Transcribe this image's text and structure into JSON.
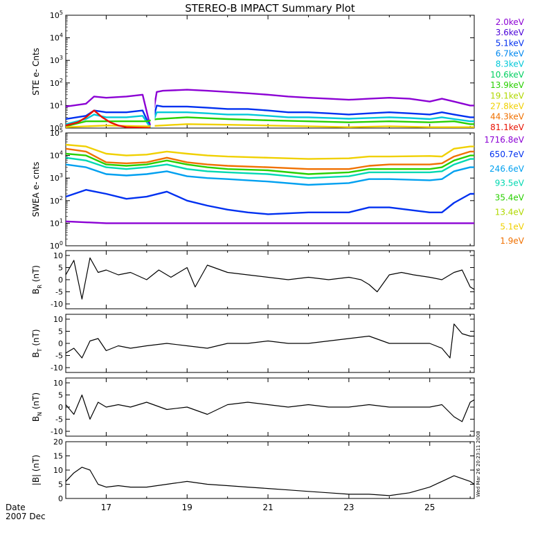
{
  "title": "STEREO-B IMPACT Summary Plot",
  "timestamp": "Wed Mar 26 20:23:11 2008",
  "date_label": "Date",
  "month_label": "2007 Dec",
  "chart_data": [
    {
      "type": "line",
      "name": "ste",
      "ylabel": "STE e- Cnts",
      "scale": "log",
      "ylim": [
        1,
        100000
      ],
      "ticks": [
        1,
        10,
        100,
        1000,
        10000,
        100000
      ],
      "tick_labels": [
        "10^0",
        "10^1",
        "10^2",
        "10^3",
        "10^4",
        "10^5"
      ],
      "xlim": [
        16,
        26.1
      ],
      "gap": [
        18.1,
        18.2
      ],
      "legend": [
        {
          "label": "2.0keV",
          "color": "#8b00d4"
        },
        {
          "label": "3.6keV",
          "color": "#4a00d8"
        },
        {
          "label": "5.1keV",
          "color": "#0030f0"
        },
        {
          "label": "6.7keV",
          "color": "#0088f0"
        },
        {
          "label": "8.3keV",
          "color": "#00c8d8"
        },
        {
          "label": "10.6keV",
          "color": "#00d060"
        },
        {
          "label": "13.9keV",
          "color": "#28d000"
        },
        {
          "label": "19.1keV",
          "color": "#b0d800"
        },
        {
          "label": "27.8keV",
          "color": "#f0d000"
        },
        {
          "label": "44.3keV",
          "color": "#f07000"
        },
        {
          "label": "81.1keV",
          "color": "#e81000"
        }
      ],
      "series": [
        {
          "color": "#8b00d4",
          "x": [
            16,
            16.5,
            16.7,
            17,
            17.5,
            17.9,
            18.1,
            18.25,
            18.4,
            19,
            19.5,
            20,
            20.5,
            21,
            21.5,
            22,
            22.5,
            23,
            23.5,
            24,
            24.5,
            25,
            25.3,
            25.6,
            26,
            26.1
          ],
          "y": [
            9,
            12,
            25,
            22,
            25,
            30,
            1,
            40,
            45,
            50,
            45,
            40,
            35,
            30,
            25,
            22,
            20,
            18,
            20,
            22,
            20,
            15,
            20,
            15,
            10,
            10
          ]
        },
        {
          "color": "#0030f0",
          "x": [
            16,
            16.5,
            16.7,
            17,
            17.5,
            17.9,
            18.1,
            18.25,
            18.4,
            19,
            19.5,
            20,
            20.5,
            21,
            21.5,
            22,
            22.5,
            23,
            23.5,
            24,
            24.5,
            25,
            25.3,
            25.6,
            26,
            26.1
          ],
          "y": [
            2.5,
            3.5,
            6,
            5,
            5,
            6,
            1,
            10,
            9,
            9,
            8,
            7,
            7,
            6,
            5,
            5,
            4.5,
            4,
            4.5,
            5,
            4.5,
            4,
            5,
            4,
            3,
            3
          ]
        },
        {
          "color": "#00c8d8",
          "x": [
            16,
            16.5,
            16.7,
            17,
            17.5,
            17.9,
            18.1,
            18.25,
            18.4,
            19,
            19.5,
            20,
            20.5,
            21,
            21.5,
            22,
            22.5,
            23,
            23.5,
            24,
            24.5,
            25,
            25.3,
            25.6,
            26,
            26.1
          ],
          "y": [
            1.5,
            2.5,
            4,
            3,
            3,
            3.5,
            1,
            5,
            5,
            5,
            4.5,
            4,
            4,
            3.5,
            3,
            3,
            2.8,
            2.6,
            2.8,
            3,
            2.8,
            2.5,
            3,
            2.5,
            2,
            2
          ]
        },
        {
          "color": "#28d000",
          "x": [
            16,
            16.5,
            17,
            17.5,
            18,
            18.25,
            19,
            20,
            21,
            22,
            23,
            24,
            25,
            25.6,
            26,
            26.1
          ],
          "y": [
            1.2,
            2,
            2,
            2,
            2,
            2.5,
            3,
            2.5,
            2.2,
            2,
            1.8,
            2,
            1.8,
            2,
            1.5,
            1.5
          ]
        },
        {
          "color": "#f0d000",
          "x": [
            16,
            17,
            18,
            19,
            20,
            21,
            22,
            23,
            24,
            25,
            26,
            26.1
          ],
          "y": [
            1.1,
            1.3,
            1.2,
            1.5,
            1.4,
            1.3,
            1.2,
            1.1,
            1.2,
            1.1,
            1.1,
            1.1
          ]
        },
        {
          "color": "#e81000",
          "x": [
            16,
            16.3,
            16.5,
            16.7,
            16.9,
            17.1,
            17.3,
            17.5,
            17.8,
            18.1
          ],
          "y": [
            1.3,
            1.8,
            3,
            6,
            3,
            1.8,
            1.3,
            1.1,
            1.05,
            1
          ]
        }
      ]
    },
    {
      "type": "line",
      "name": "swea",
      "ylabel": "SWEA e- cnts",
      "scale": "log",
      "ylim": [
        1,
        100000
      ],
      "ticks": [
        1,
        10,
        100,
        1000,
        10000,
        100000
      ],
      "tick_labels": [
        "10^0",
        "10^1",
        "10^2",
        "10^3",
        "10^4",
        "10^5"
      ],
      "xlim": [
        16,
        26.1
      ],
      "legend": [
        {
          "label": "1716.8eV",
          "color": "#8b00d4"
        },
        {
          "label": "650.7eV",
          "color": "#0030f0"
        },
        {
          "label": "246.6eV",
          "color": "#00a0f0"
        },
        {
          "label": "93.5eV",
          "color": "#00d8b0"
        },
        {
          "label": "35.4eV",
          "color": "#28d000"
        },
        {
          "label": "13.4eV",
          "color": "#b0d800"
        },
        {
          "label": "5.1eV",
          "color": "#f0d000"
        },
        {
          "label": "1.9eV",
          "color": "#f07000"
        }
      ],
      "series": [
        {
          "color": "#f0d000",
          "x": [
            16,
            16.5,
            17,
            17.5,
            18,
            18.5,
            19,
            19.5,
            20,
            21,
            22,
            23,
            23.5,
            24,
            25,
            25.3,
            25.6,
            26,
            26.1
          ],
          "y": [
            30000,
            25000,
            12000,
            10000,
            11000,
            15000,
            12000,
            10000,
            9000,
            8000,
            7000,
            7500,
            9000,
            9000,
            9500,
            9000,
            20000,
            25000,
            25000
          ]
        },
        {
          "color": "#f07000",
          "x": [
            16,
            16.5,
            17,
            17.5,
            18,
            18.5,
            19,
            19.5,
            20,
            21,
            22,
            23,
            23.5,
            24,
            25,
            25.3,
            25.6,
            26,
            26.1
          ],
          "y": [
            20000,
            15000,
            5000,
            4500,
            5000,
            8000,
            5000,
            4000,
            3500,
            3000,
            2500,
            2500,
            3500,
            4000,
            4000,
            4500,
            9000,
            15000,
            15000
          ]
        },
        {
          "color": "#28d000",
          "x": [
            16,
            16.5,
            17,
            17.5,
            18,
            18.5,
            19,
            19.5,
            20,
            21,
            22,
            23,
            23.5,
            24,
            25,
            25.3,
            25.6,
            26,
            26.1
          ],
          "y": [
            12000,
            10000,
            4000,
            3500,
            4000,
            6000,
            4000,
            3000,
            2500,
            2200,
            1500,
            1800,
            2500,
            2500,
            2500,
            3000,
            6000,
            10000,
            10000
          ]
        },
        {
          "color": "#00d8b0",
          "x": [
            16,
            16.5,
            17,
            17.5,
            18,
            18.5,
            19,
            19.5,
            20,
            21,
            22,
            23,
            23.5,
            24,
            25,
            25.3,
            25.6,
            26,
            26.1
          ],
          "y": [
            8000,
            6000,
            3000,
            2500,
            3000,
            4000,
            2500,
            2000,
            1800,
            1500,
            1000,
            1200,
            1800,
            1800,
            1800,
            2000,
            4000,
            7000,
            7000
          ]
        },
        {
          "color": "#00a0f0",
          "x": [
            16,
            16.5,
            17,
            17.5,
            18,
            18.5,
            19,
            19.5,
            20,
            21,
            22,
            23,
            23.5,
            24,
            25,
            25.3,
            25.6,
            26,
            26.1
          ],
          "y": [
            4000,
            3000,
            1500,
            1300,
            1500,
            2000,
            1200,
            1000,
            900,
            700,
            500,
            600,
            900,
            900,
            800,
            900,
            2000,
            3000,
            3000
          ]
        },
        {
          "color": "#0030f0",
          "x": [
            16,
            16.5,
            17,
            17.5,
            18,
            18.5,
            19,
            19.5,
            20,
            20.5,
            21,
            22,
            23,
            23.5,
            24,
            25,
            25.3,
            25.6,
            26,
            26.1
          ],
          "y": [
            150,
            300,
            200,
            120,
            150,
            250,
            100,
            60,
            40,
            30,
            25,
            30,
            30,
            50,
            50,
            30,
            30,
            80,
            200,
            200
          ]
        },
        {
          "color": "#8b00d4",
          "x": [
            16,
            17,
            18,
            19,
            20,
            21,
            22,
            23,
            24,
            25,
            26,
            26.1
          ],
          "y": [
            12,
            10,
            10,
            10,
            10,
            10,
            10,
            10,
            10,
            10,
            10,
            10
          ]
        }
      ]
    },
    {
      "type": "line",
      "name": "br",
      "ylabel": "B_R (nT)",
      "ylim": [
        -12,
        12
      ],
      "ticks": [
        -10,
        -5,
        0,
        5,
        10
      ],
      "tick_labels": [
        "-10",
        "-5",
        "0",
        "5",
        "10"
      ],
      "xlim": [
        16,
        26.1
      ],
      "series": [
        {
          "color": "#000000",
          "x": [
            16,
            16.2,
            16.4,
            16.6,
            16.8,
            17,
            17.3,
            17.6,
            18,
            18.3,
            18.6,
            19,
            19.2,
            19.5,
            20,
            20.5,
            21,
            21.5,
            22,
            22.5,
            23,
            23.3,
            23.5,
            23.7,
            24,
            24.3,
            24.6,
            25,
            25.3,
            25.6,
            25.8,
            26,
            26.1
          ],
          "y": [
            2,
            8,
            -8,
            9,
            3,
            4,
            2,
            3,
            0,
            4,
            1,
            5,
            -3,
            6,
            3,
            2,
            1,
            0,
            1,
            0,
            1,
            0,
            -2,
            -5,
            2,
            3,
            2,
            1,
            0,
            3,
            4,
            -3,
            -4
          ]
        }
      ]
    },
    {
      "type": "line",
      "name": "bt",
      "ylabel": "B_T (nT)",
      "ylim": [
        -12,
        12
      ],
      "ticks": [
        -10,
        -5,
        0,
        5,
        10
      ],
      "tick_labels": [
        "-10",
        "-5",
        "0",
        "5",
        "10"
      ],
      "xlim": [
        16,
        26.1
      ],
      "series": [
        {
          "color": "#000000",
          "x": [
            16,
            16.2,
            16.4,
            16.6,
            16.8,
            17,
            17.3,
            17.6,
            18,
            18.5,
            19,
            19.5,
            20,
            20.5,
            21,
            21.5,
            22,
            22.5,
            23,
            23.5,
            24,
            24.5,
            25,
            25.3,
            25.5,
            25.6,
            25.8,
            26,
            26.1
          ],
          "y": [
            -4,
            -2,
            -6,
            1,
            2,
            -3,
            -1,
            -2,
            -1,
            0,
            -1,
            -2,
            0,
            0,
            1,
            0,
            0,
            1,
            2,
            3,
            0,
            0,
            0,
            -2,
            -6,
            8,
            4,
            3,
            3
          ]
        }
      ]
    },
    {
      "type": "line",
      "name": "bn",
      "ylabel": "B_N (nT)",
      "ylim": [
        -12,
        12
      ],
      "ticks": [
        -10,
        -5,
        0,
        5,
        10
      ],
      "tick_labels": [
        "-10",
        "-5",
        "0",
        "5",
        "10"
      ],
      "xlim": [
        16,
        26.1
      ],
      "series": [
        {
          "color": "#000000",
          "x": [
            16,
            16.2,
            16.4,
            16.6,
            16.8,
            17,
            17.3,
            17.6,
            18,
            18.5,
            19,
            19.5,
            20,
            20.5,
            21,
            21.5,
            22,
            22.5,
            23,
            23.5,
            24,
            24.5,
            25,
            25.3,
            25.6,
            25.8,
            26,
            26.1
          ],
          "y": [
            1,
            -3,
            5,
            -5,
            2,
            0,
            1,
            0,
            2,
            -1,
            0,
            -3,
            1,
            2,
            1,
            0,
            1,
            0,
            0,
            1,
            0,
            0,
            0,
            1,
            -4,
            -6,
            2,
            3
          ]
        }
      ]
    },
    {
      "type": "line",
      "name": "bmag",
      "ylabel": "|B| (nT)",
      "ylim": [
        0,
        20
      ],
      "ticks": [
        0,
        5,
        10,
        15,
        20
      ],
      "tick_labels": [
        "0",
        "5",
        "10",
        "15",
        "20"
      ],
      "xlim": [
        16,
        26.1
      ],
      "series": [
        {
          "color": "#000000",
          "x": [
            16,
            16.2,
            16.4,
            16.6,
            16.8,
            17,
            17.3,
            17.6,
            18,
            18.5,
            19,
            19.5,
            20,
            20.5,
            21,
            21.5,
            22,
            22.5,
            23,
            23.5,
            24,
            24.5,
            25,
            25.3,
            25.6,
            25.8,
            26,
            26.1
          ],
          "y": [
            6,
            9,
            11,
            10,
            5,
            4,
            4.5,
            4,
            4,
            5,
            6,
            5,
            4.5,
            4,
            3.5,
            3,
            2.5,
            2,
            1.5,
            1.5,
            1,
            2,
            4,
            6,
            8,
            7,
            6,
            5
          ]
        }
      ]
    }
  ],
  "x_axis": {
    "ticks": [
      17,
      19,
      21,
      23,
      25
    ],
    "tick_labels": [
      "17",
      "19",
      "21",
      "23",
      "25"
    ],
    "xlim": [
      16,
      26.1
    ]
  }
}
